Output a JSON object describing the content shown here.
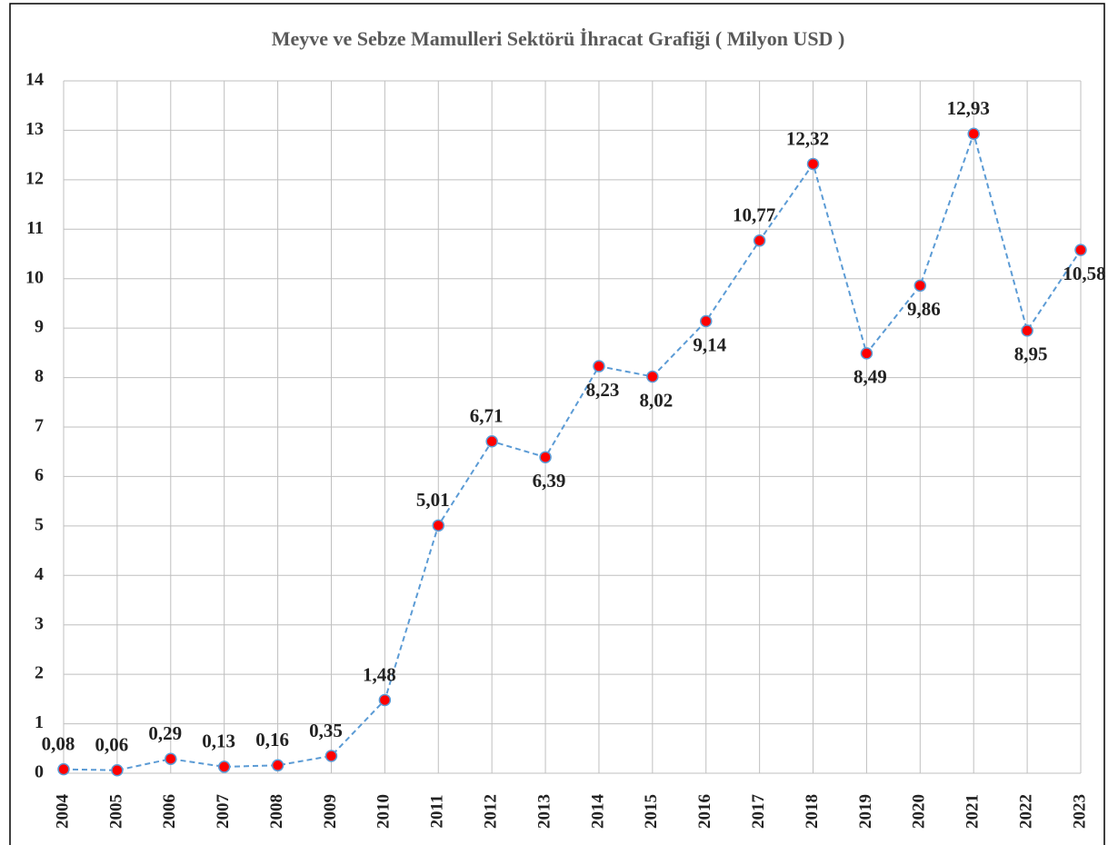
{
  "chart_data": {
    "type": "line",
    "title": "Meyve ve Sebze Mamulleri Sektörü İhracat Grafiği ( Milyon USD )",
    "categories": [
      "2004",
      "2005",
      "2006",
      "2007",
      "2008",
      "2009",
      "2010",
      "2011",
      "2012",
      "2013",
      "2014",
      "2015",
      "2016",
      "2017",
      "2018",
      "2019",
      "2020",
      "2021",
      "2022",
      "2023"
    ],
    "series": [
      {
        "name": "İhracat",
        "color": "#5b9bd5",
        "marker_color": "#ff0000",
        "values": [
          0.08,
          0.06,
          0.29,
          0.13,
          0.16,
          0.35,
          1.48,
          5.01,
          6.71,
          6.39,
          8.23,
          8.02,
          9.14,
          10.77,
          12.32,
          8.49,
          9.86,
          12.93,
          8.95,
          10.58
        ],
        "value_labels": [
          "0,08",
          "0,06",
          "0,29",
          "0,13",
          "0,16",
          "0,35",
          "1,48",
          "5,01",
          "6,71",
          "6,39",
          "8,23",
          "8,02",
          "9,14",
          "10,77",
          "12,32",
          "8,49",
          "9,86",
          "12,93",
          "8,95",
          "10,58"
        ]
      }
    ],
    "ylim": [
      0,
      14
    ],
    "yticks": [
      0,
      1,
      2,
      3,
      4,
      5,
      6,
      7,
      8,
      9,
      10,
      11,
      12,
      13,
      14
    ],
    "grid": true
  }
}
